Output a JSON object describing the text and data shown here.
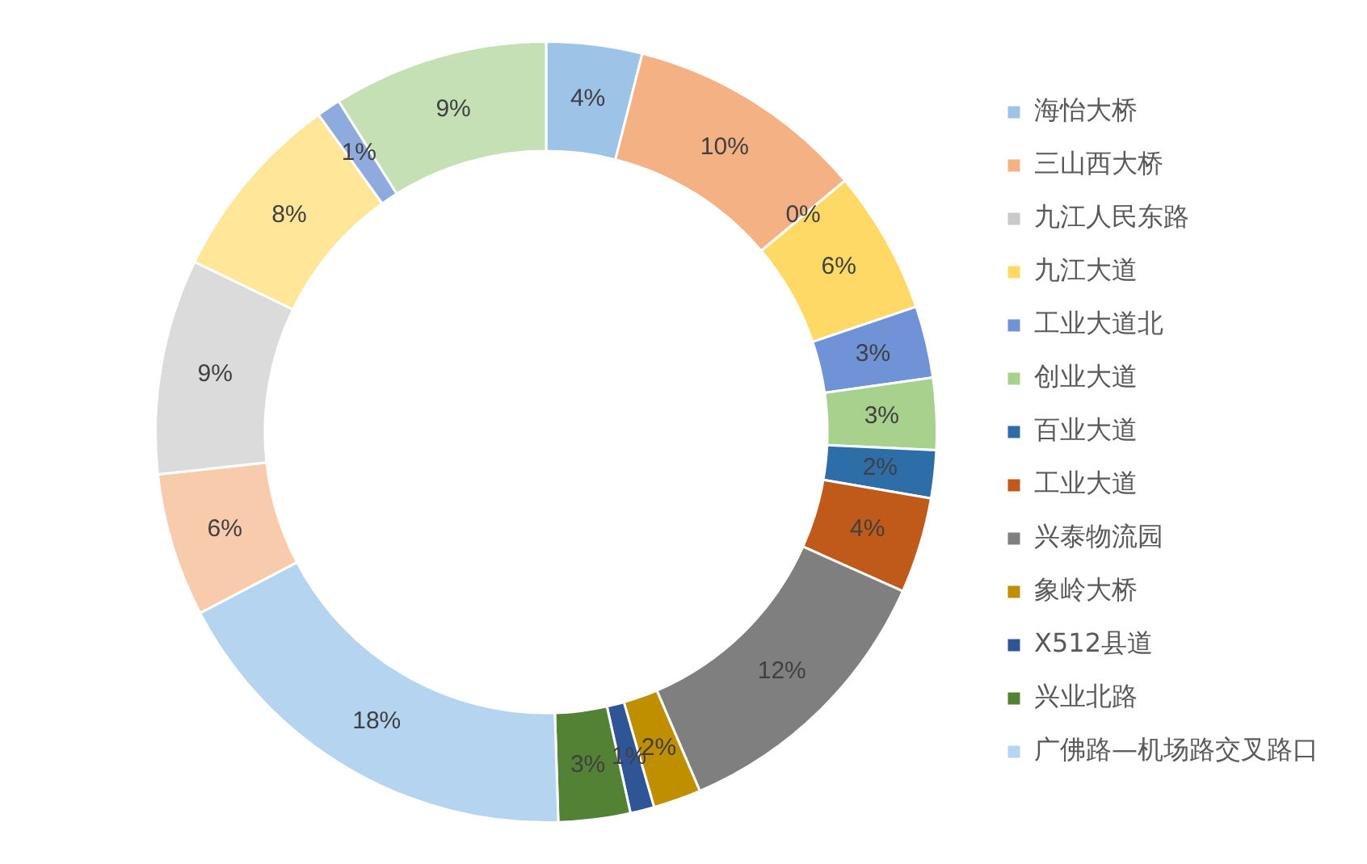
{
  "chart_data": {
    "type": "donut",
    "legend": "right",
    "categories": [
      "海怡大桥",
      "三山西大桥",
      "九江人民东路",
      "九江大道",
      "工业大道北",
      "创业大道",
      "百业大道",
      "工业大道",
      "兴泰物流园",
      "象岭大桥",
      "X512县道",
      "兴业北路",
      "广佛路—机场路交叉路口",
      null,
      null,
      null,
      null,
      null
    ],
    "values": [
      4,
      10,
      0,
      6,
      3,
      3,
      2,
      4,
      12,
      2,
      1,
      3,
      18,
      6,
      9,
      8,
      1,
      9
    ],
    "value_labels": [
      "4%",
      "10%",
      "0%",
      "6%",
      "3%",
      "3%",
      "2%",
      "4%",
      "12%",
      "2%",
      "1%",
      "3%",
      "18%",
      "6%",
      "9%",
      "8%",
      "1%",
      "9%"
    ],
    "colors": [
      "#9dc3e6",
      "#f4b183",
      "#c9c9c9",
      "#ffd966",
      "#6f93d6",
      "#a9d18e",
      "#2e6ea8",
      "#c05a1a",
      "#7f7f7f",
      "#bf8f00",
      "#2f5597",
      "#548235",
      "#b4d4f0",
      "#f8cbad",
      "#dbdbdb",
      "#ffe699",
      "#8faadc",
      "#c5e0b4"
    ]
  }
}
